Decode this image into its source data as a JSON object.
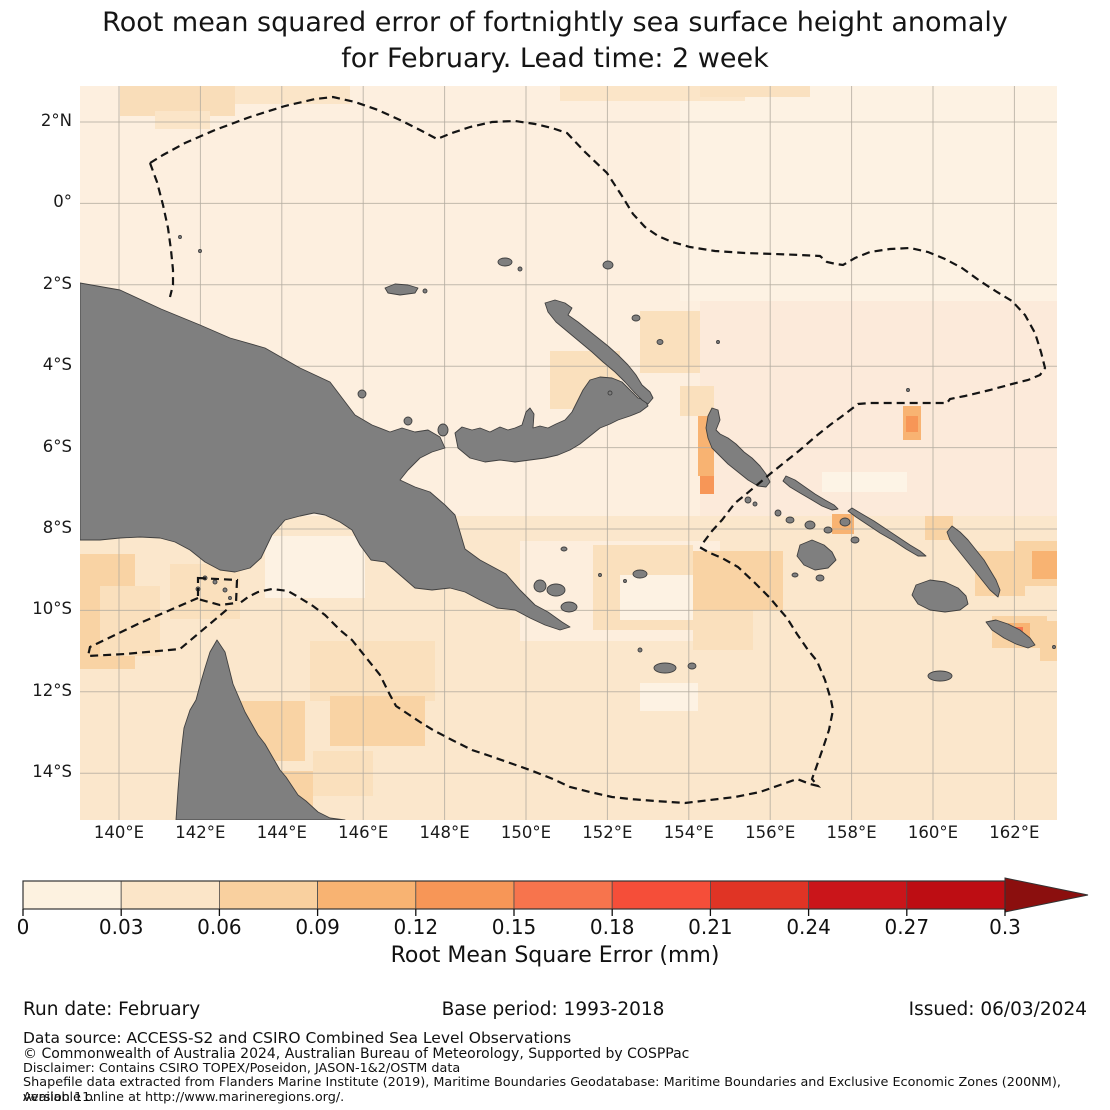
{
  "title": {
    "line1": "Root mean squared error of fortnightly sea surface height anomaly",
    "line2": "for February. Lead time: 2 week"
  },
  "map": {
    "x_tick_labels": [
      "140°E",
      "142°E",
      "144°E",
      "146°E",
      "148°E",
      "150°E",
      "152°E",
      "154°E",
      "156°E",
      "158°E",
      "160°E",
      "162°E"
    ],
    "y_tick_labels": [
      "2°N",
      "0°",
      "2°S",
      "4°S",
      "6°S",
      "8°S",
      "10°S",
      "12°S",
      "14°S"
    ],
    "colors": {
      "ocean": "#fdefdf",
      "land": "#7f7f7f",
      "land_outline": "#404040",
      "grid": "#b3aca0",
      "eez_boundary": "#141414"
    }
  },
  "colorbar": {
    "tick_labels": [
      "0",
      "0.03",
      "0.06",
      "0.09",
      "0.12",
      "0.15",
      "0.18",
      "0.21",
      "0.24",
      "0.27",
      "0.3"
    ],
    "segment_colors": [
      "#fdf2e0",
      "#fbe5c8",
      "#f9d09f",
      "#f8b372",
      "#f79657",
      "#f7744d",
      "#f54e39",
      "#e03425",
      "#ca151a",
      "#bd0d13"
    ],
    "overflow_color": "#8b0f0e",
    "label": "Root Mean Square Error (mm)"
  },
  "footer": {
    "run_date": "Run date: February",
    "base_period": "Base period: 1993-2018",
    "issued": "Issued: 06/03/2024",
    "data_source": "Data source: ACCESS-S2 and CSIRO Combined Sea Level Observations",
    "copyright": "© Commonwealth of Australia 2024, Australian Bureau of Meteorology, Supported by COSPPac",
    "disclaimer": "Disclaimer: Contains CSIRO TOPEX/Poseidon, JASON-1&2/OSTM data",
    "shapefile": "Shapefile data extracted from Flanders Marine Institute (2019), Maritime Boundaries Geodatabase: Maritime Boundaries and Exclusive Economic Zones (200NM), version 11.",
    "available": "Available online at http://www.marineregions.org/."
  },
  "chart_data": {
    "type": "heatmap",
    "title": "Root mean squared error of fortnightly sea surface height anomaly for February. Lead time: 2 week",
    "colorbar_label": "Root Mean Square Error (mm)",
    "colorbar_ticks": [
      0,
      0.03,
      0.06,
      0.09,
      0.12,
      0.15,
      0.18,
      0.21,
      0.24,
      0.27,
      0.3
    ],
    "value_range": [
      0,
      0.3
    ],
    "units": "mm",
    "x_tick_labels": [
      "140°E",
      "142°E",
      "144°E",
      "146°E",
      "148°E",
      "150°E",
      "152°E",
      "154°E",
      "156°E",
      "158°E",
      "160°E",
      "162°E"
    ],
    "y_tick_labels": [
      "2°N",
      "0°",
      "2°S",
      "4°S",
      "6°S",
      "8°S",
      "10°S",
      "12°S",
      "14°S"
    ],
    "legend_position": "bottom",
    "grid": true,
    "field_summary": "RMSE mostly 0.00-0.09 mm across the region; slightly higher blocky patches (0.06-0.12 mm) south of 8°S, in the Torres Strait / Coral Sea, and around Bougainville and the Solomon Islands, with isolated spots up to ~0.15-0.18 mm near Makira and 157°E 5°S; dashed lines show EEZ maritime boundaries; land shown in grey"
  }
}
